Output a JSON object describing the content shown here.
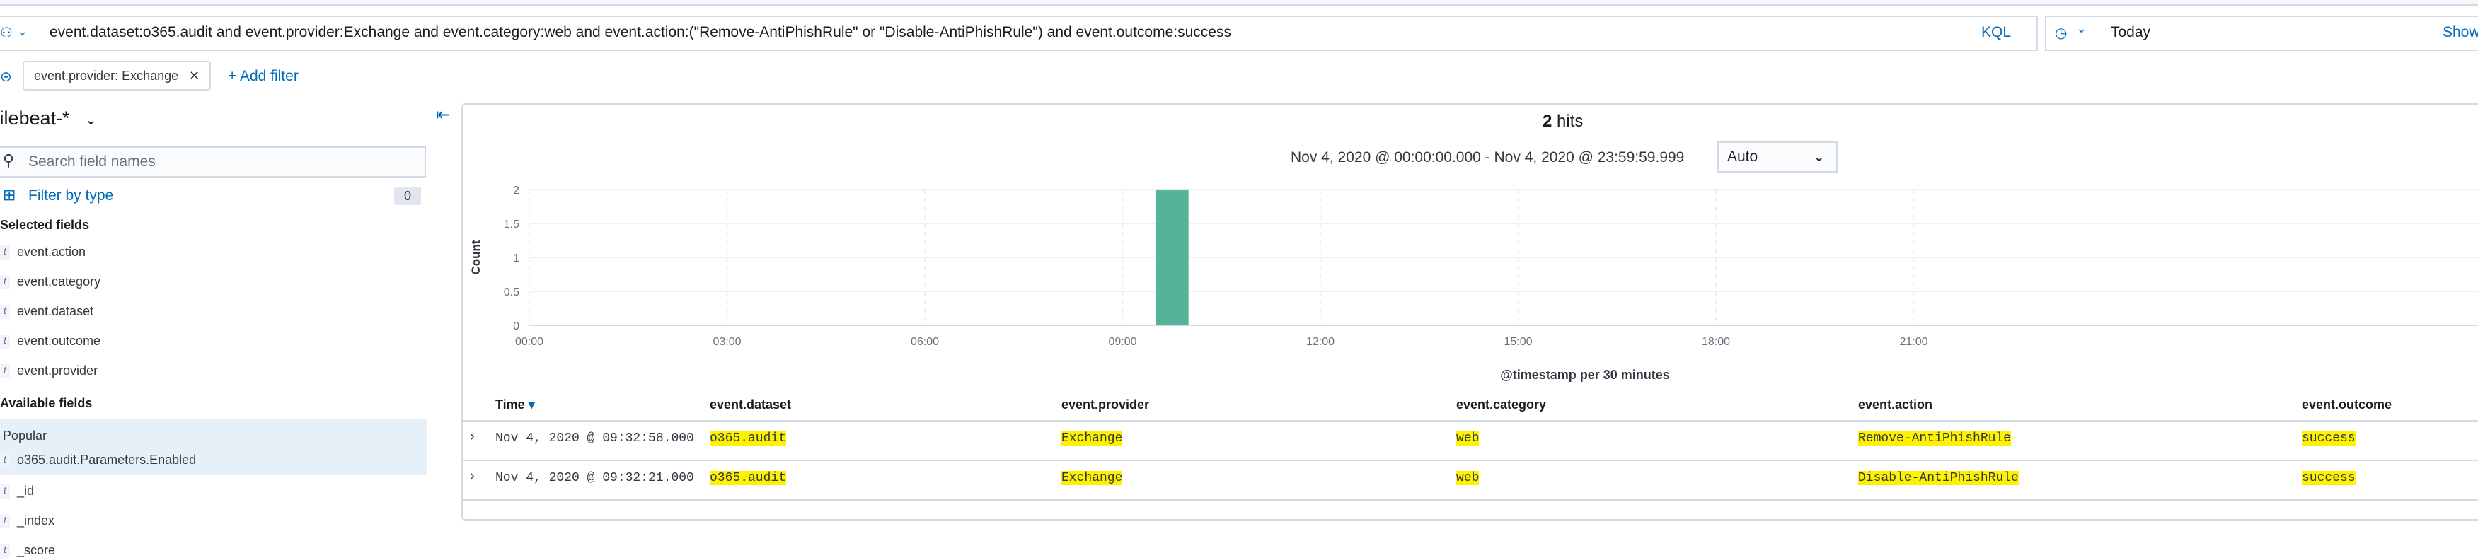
{
  "query": {
    "text": "event.dataset:o365.audit and event.provider:Exchange and event.category:web and event.action:(\"Remove-AntiPhishRule\" or \"Disable-AntiPhishRule\") and event.outcome:success",
    "language": "KQL"
  },
  "datepicker": {
    "value": "Today",
    "show_label": "Show"
  },
  "filters": {
    "pill_label": "event.provider: Exchange",
    "add_label": "+ Add filter"
  },
  "sidebar": {
    "index_pattern": "filebeat-*",
    "search_placeholder": "Search field names",
    "filter_by_type": "Filter by type",
    "filter_count": "0",
    "selected_title": "Selected fields",
    "selected_fields": [
      "event.action",
      "event.category",
      "event.dataset",
      "event.outcome",
      "event.provider"
    ],
    "available_title": "Available fields",
    "popular_title": "Popular",
    "popular_fields": [
      "o365.audit.Parameters.Enabled"
    ],
    "other_fields": [
      "_id",
      "_index",
      "_score"
    ],
    "field_type_glyph": "t"
  },
  "hits": {
    "count": "2",
    "label": "hits"
  },
  "time_range": {
    "text": "Nov 4, 2020 @ 00:00:00.000 - Nov 4, 2020 @ 23:59:59.999",
    "interval": "Auto"
  },
  "chart_data": {
    "type": "bar",
    "xlabel": "@timestamp per 30 minutes",
    "ylabel": "Count",
    "x_ticks": [
      "00:00",
      "03:00",
      "06:00",
      "09:00",
      "12:00",
      "15:00",
      "18:00",
      "21:00"
    ],
    "y_ticks": [
      "0",
      "0.5",
      "1",
      "1.5",
      "2"
    ],
    "ylim": [
      0,
      2
    ],
    "xlim_hours": [
      0,
      24
    ],
    "bars": [
      {
        "start": "09:30",
        "end": "10:00",
        "value": 2
      }
    ],
    "bar_color": "#54b399",
    "grid": true
  },
  "table": {
    "columns": [
      "Time",
      "event.dataset",
      "event.provider",
      "event.category",
      "event.action",
      "event.outcome"
    ],
    "rows": [
      [
        "Nov 4, 2020 @ 09:32:58.000",
        "o365.audit",
        "Exchange",
        "web",
        "Remove-AntiPhishRule",
        "success"
      ],
      [
        "Nov 4, 2020 @ 09:32:21.000",
        "o365.audit",
        "Exchange",
        "web",
        "Disable-AntiPhishRule",
        "success"
      ]
    ]
  },
  "colors": {
    "accent": "#006bb8",
    "highlight": "#fff200",
    "border": "#d3dae6"
  }
}
